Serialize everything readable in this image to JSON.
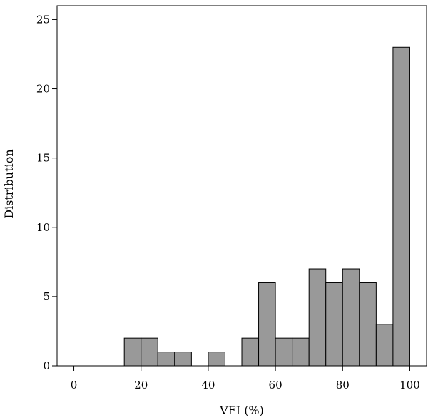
{
  "chart_data": {
    "type": "bar",
    "xlabel": "VFI (%)",
    "ylabel": "Distribution",
    "xlim": [
      -5,
      105
    ],
    "ylim": [
      0,
      26
    ],
    "xticks": [
      0,
      20,
      40,
      60,
      80,
      100
    ],
    "yticks": [
      0,
      5,
      10,
      15,
      20,
      25
    ],
    "bin_width": 5,
    "bins": [
      {
        "start": 15,
        "end": 20,
        "value": 2
      },
      {
        "start": 20,
        "end": 25,
        "value": 2
      },
      {
        "start": 25,
        "end": 30,
        "value": 1
      },
      {
        "start": 30,
        "end": 35,
        "value": 1
      },
      {
        "start": 40,
        "end": 45,
        "value": 1
      },
      {
        "start": 50,
        "end": 55,
        "value": 2
      },
      {
        "start": 55,
        "end": 60,
        "value": 6
      },
      {
        "start": 60,
        "end": 65,
        "value": 2
      },
      {
        "start": 65,
        "end": 70,
        "value": 2
      },
      {
        "start": 70,
        "end": 75,
        "value": 7
      },
      {
        "start": 75,
        "end": 80,
        "value": 6
      },
      {
        "start": 80,
        "end": 85,
        "value": 7
      },
      {
        "start": 85,
        "end": 90,
        "value": 6
      },
      {
        "start": 90,
        "end": 95,
        "value": 3
      },
      {
        "start": 95,
        "end": 100,
        "value": 23
      }
    ],
    "bar_color": "#999999",
    "grid": false,
    "legend": "none"
  }
}
